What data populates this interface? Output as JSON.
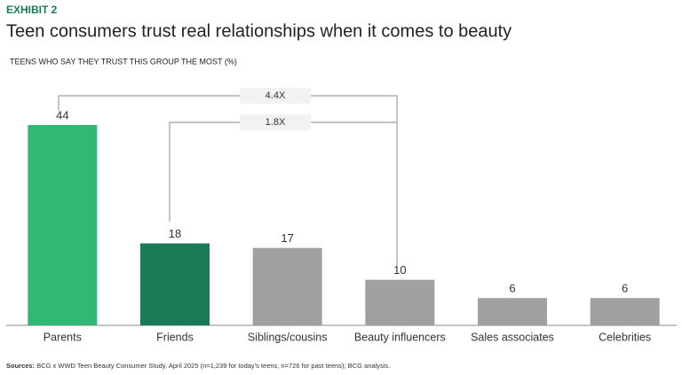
{
  "chart_data": {
    "type": "bar",
    "exhibit": "EXHIBIT 2",
    "title": "Teen consumers trust real relationships when it comes to beauty",
    "subtitle": "TEENS WHO SAY THEY TRUST THIS GROUP THE MOST (%)",
    "categories": [
      "Parents",
      "Friends",
      "Siblings/cousins",
      "Beauty influencers",
      "Sales associates",
      "Celebrities"
    ],
    "values": [
      44,
      18,
      17,
      10,
      6,
      6
    ],
    "colors": [
      "#32b774",
      "#197a56",
      "#a0a0a0",
      "#a0a0a0",
      "#a0a0a0",
      "#a0a0a0"
    ],
    "annotations": [
      "4.4X",
      "1.8X"
    ],
    "source_label": "Sources:",
    "source": "BCG x WWD Teen Beauty Consumer Study, April 2025 (n=1,239 for today's teens, n=726 for past teens); BCG analysis."
  }
}
